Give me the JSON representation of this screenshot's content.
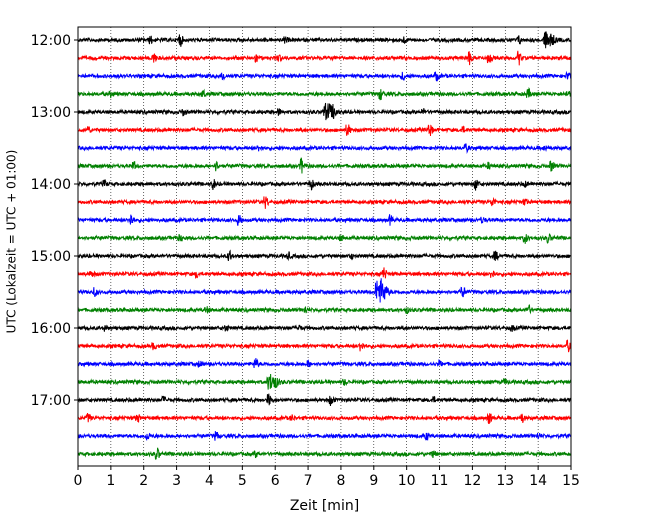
{
  "chart_data": {
    "type": "line",
    "title": "",
    "xlabel": "Zeit  [min]",
    "ylabel": "UTC (Lokalzeit = UTC + 01:00)",
    "xlim": [
      0,
      15
    ],
    "x_ticks": [
      "0",
      "1",
      "2",
      "3",
      "4",
      "5",
      "6",
      "7",
      "8",
      "9",
      "10",
      "11",
      "12",
      "13",
      "14",
      "15"
    ],
    "y_ticks": [
      "12:00",
      "13:00",
      "14:00",
      "15:00",
      "16:00",
      "17:00"
    ],
    "grid": "vertical-dotted",
    "row_minutes": 15,
    "colors": [
      "#000000",
      "#ff0000",
      "#0000ff",
      "#008000"
    ],
    "rows": [
      {
        "start": "12:00",
        "color": "#000000",
        "events": [
          [
            2.2,
            0.8
          ],
          [
            3.1,
            1.5
          ],
          [
            6.3,
            0.7
          ],
          [
            9.9,
            0.7
          ],
          [
            13.4,
            1.0
          ],
          [
            14.2,
            2.0
          ]
        ]
      },
      {
        "start": "12:15",
        "color": "#ff0000",
        "events": [
          [
            2.3,
            1.3
          ],
          [
            5.4,
            1.0
          ],
          [
            6.1,
            0.8
          ],
          [
            11.9,
            1.4
          ],
          [
            12.5,
            1.2
          ],
          [
            13.4,
            1.6
          ]
        ]
      },
      {
        "start": "12:30",
        "color": "#0000ff",
        "events": [
          [
            4.4,
            1.0
          ],
          [
            9.9,
            0.9
          ],
          [
            10.9,
            1.0
          ],
          [
            14.9,
            0.8
          ]
        ]
      },
      {
        "start": "12:45",
        "color": "#008000",
        "events": [
          [
            1.0,
            0.6
          ],
          [
            3.8,
            0.7
          ],
          [
            9.2,
            1.2
          ],
          [
            13.7,
            1.0
          ],
          [
            14.9,
            0.6
          ]
        ]
      },
      {
        "start": "13:00",
        "color": "#000000",
        "events": [
          [
            3.2,
            0.7
          ],
          [
            6.1,
            0.7
          ],
          [
            7.5,
            2.0
          ],
          [
            7.8,
            1.0
          ],
          [
            10.5,
            0.6
          ]
        ]
      },
      {
        "start": "13:15",
        "color": "#ff0000",
        "events": [
          [
            0.3,
            0.9
          ],
          [
            8.2,
            1.4
          ],
          [
            10.7,
            1.6
          ],
          [
            11.7,
            0.6
          ]
        ]
      },
      {
        "start": "13:30",
        "color": "#0000ff",
        "events": [
          [
            5.5,
            0.6
          ],
          [
            11.8,
            0.8
          ],
          [
            14.2,
            0.5
          ]
        ]
      },
      {
        "start": "13:45",
        "color": "#008000",
        "events": [
          [
            1.7,
            0.8
          ],
          [
            4.2,
            1.0
          ],
          [
            6.8,
            1.8
          ],
          [
            12.5,
            0.6
          ],
          [
            14.4,
            1.2
          ]
        ]
      },
      {
        "start": "14:00",
        "color": "#000000",
        "events": [
          [
            0.8,
            0.8
          ],
          [
            4.1,
            1.3
          ],
          [
            7.1,
            1.2
          ],
          [
            12.1,
            1.4
          ],
          [
            13.6,
            0.6
          ]
        ]
      },
      {
        "start": "14:15",
        "color": "#ff0000",
        "events": [
          [
            5.7,
            1.4
          ],
          [
            12.6,
            1.1
          ],
          [
            13.6,
            0.6
          ]
        ]
      },
      {
        "start": "14:30",
        "color": "#0000ff",
        "events": [
          [
            1.6,
            1.5
          ],
          [
            4.9,
            1.3
          ],
          [
            9.5,
            1.1
          ],
          [
            12.3,
            0.6
          ]
        ]
      },
      {
        "start": "14:45",
        "color": "#008000",
        "events": [
          [
            3.1,
            0.6
          ],
          [
            8.0,
            0.6
          ],
          [
            13.6,
            1.2
          ],
          [
            14.3,
            1.1
          ]
        ]
      },
      {
        "start": "15:00",
        "color": "#000000",
        "events": [
          [
            4.6,
            1.2
          ],
          [
            6.4,
            0.7
          ],
          [
            8.3,
            0.7
          ],
          [
            12.7,
            1.0
          ]
        ]
      },
      {
        "start": "15:15",
        "color": "#ff0000",
        "events": [
          [
            0.4,
            0.8
          ],
          [
            3.6,
            0.7
          ],
          [
            9.3,
            1.4
          ],
          [
            12.6,
            1.0
          ]
        ]
      },
      {
        "start": "15:30",
        "color": "#0000ff",
        "events": [
          [
            0.5,
            1.0
          ],
          [
            9.1,
            3.2
          ],
          [
            11.7,
            1.3
          ]
        ]
      },
      {
        "start": "15:45",
        "color": "#008000",
        "events": [
          [
            3.9,
            0.7
          ],
          [
            6.9,
            0.8
          ],
          [
            10.0,
            0.6
          ],
          [
            13.7,
            1.0
          ]
        ]
      },
      {
        "start": "16:00",
        "color": "#000000",
        "events": [
          [
            0.8,
            0.8
          ],
          [
            4.5,
            0.6
          ],
          [
            6.7,
            0.6
          ],
          [
            13.2,
            0.6
          ]
        ]
      },
      {
        "start": "16:15",
        "color": "#ff0000",
        "events": [
          [
            2.3,
            0.7
          ],
          [
            8.6,
            1.3
          ],
          [
            14.9,
            1.3
          ]
        ]
      },
      {
        "start": "16:30",
        "color": "#0000ff",
        "events": [
          [
            3.7,
            0.8
          ],
          [
            5.4,
            1.2
          ],
          [
            7.0,
            0.6
          ],
          [
            11.0,
            0.6
          ]
        ]
      },
      {
        "start": "16:45",
        "color": "#008000",
        "events": [
          [
            5.8,
            1.9
          ],
          [
            8.1,
            0.6
          ],
          [
            13.0,
            0.6
          ]
        ]
      },
      {
        "start": "17:00",
        "color": "#000000",
        "events": [
          [
            2.6,
            0.7
          ],
          [
            5.8,
            1.3
          ],
          [
            7.7,
            1.2
          ],
          [
            10.8,
            0.6
          ]
        ]
      },
      {
        "start": "17:15",
        "color": "#ff0000",
        "events": [
          [
            0.3,
            0.9
          ],
          [
            1.8,
            1.0
          ],
          [
            6.5,
            0.6
          ],
          [
            12.5,
            1.4
          ],
          [
            13.5,
            1.2
          ]
        ]
      },
      {
        "start": "17:30",
        "color": "#0000ff",
        "events": [
          [
            2.1,
            0.9
          ],
          [
            4.2,
            1.0
          ],
          [
            10.6,
            0.8
          ],
          [
            14.0,
            0.6
          ]
        ]
      },
      {
        "start": "17:45",
        "color": "#008000",
        "events": [
          [
            2.4,
            1.4
          ],
          [
            5.4,
            0.6
          ],
          [
            10.8,
            0.7
          ]
        ]
      }
    ]
  }
}
